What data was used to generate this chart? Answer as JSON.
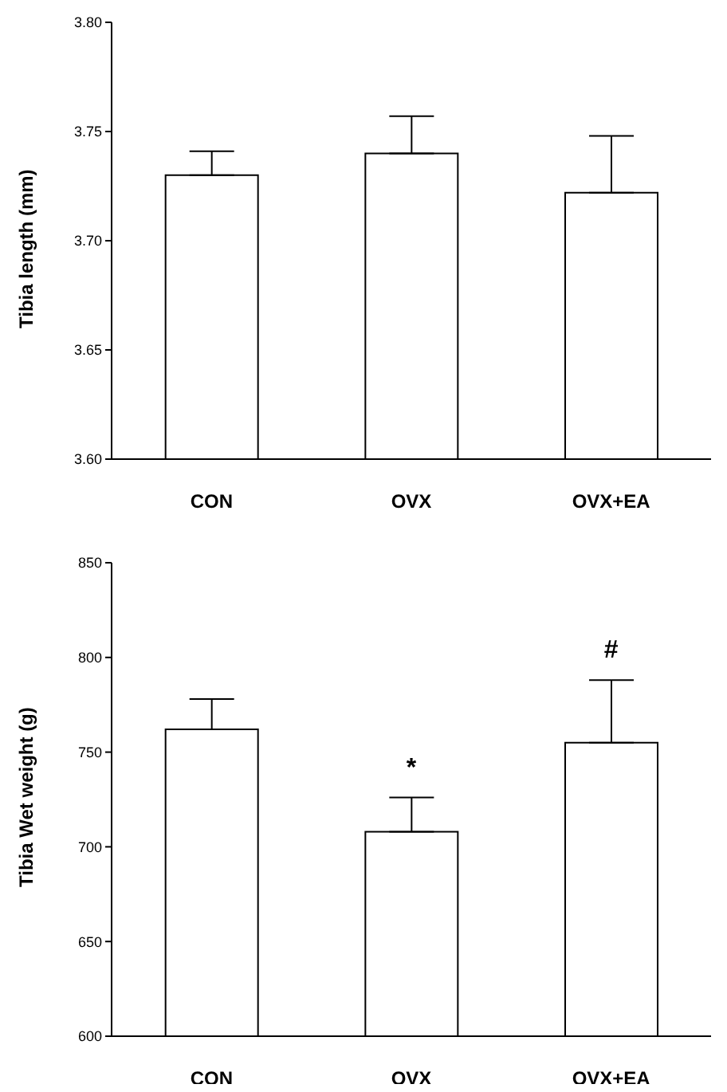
{
  "chart_data": [
    {
      "type": "bar",
      "categories": [
        "CON",
        "OVX",
        "OVX+EA"
      ],
      "ylabel": "Tibia length (mm)",
      "color": "#ffffff",
      "values": [
        3.73,
        3.74,
        3.722
      ],
      "errors": [
        [
          3.73,
          3.741
        ],
        [
          3.74,
          3.757
        ],
        [
          3.722,
          3.748
        ]
      ],
      "ylim": [
        3.6,
        3.8
      ],
      "yticks": [
        {
          "value": 3.6,
          "label": "3.60"
        },
        {
          "value": 3.65,
          "label": "3.65"
        },
        {
          "value": 3.7,
          "label": "3.70"
        },
        {
          "value": 3.75,
          "label": "3.75"
        },
        {
          "value": 3.8,
          "label": "3.80"
        }
      ],
      "grid": false,
      "legend": false
    },
    {
      "type": "bar",
      "categories": [
        "CON",
        "OVX",
        "OVX+EA"
      ],
      "ylabel": "Tibia Wet weight (g)",
      "color": "#ffffff",
      "values": [
        762,
        708,
        755
      ],
      "errors": [
        [
          762,
          778
        ],
        [
          708,
          726
        ],
        [
          755,
          788
        ]
      ],
      "ylim": [
        600,
        850
      ],
      "yticks": [
        600,
        650,
        700,
        750,
        800,
        850
      ],
      "grid": false,
      "legend": false,
      "annotations": [
        {
          "text": "*",
          "x": "OVX",
          "y": 726
        },
        {
          "text": "#",
          "x": "OVX+EA",
          "y": 788
        }
      ]
    }
  ]
}
